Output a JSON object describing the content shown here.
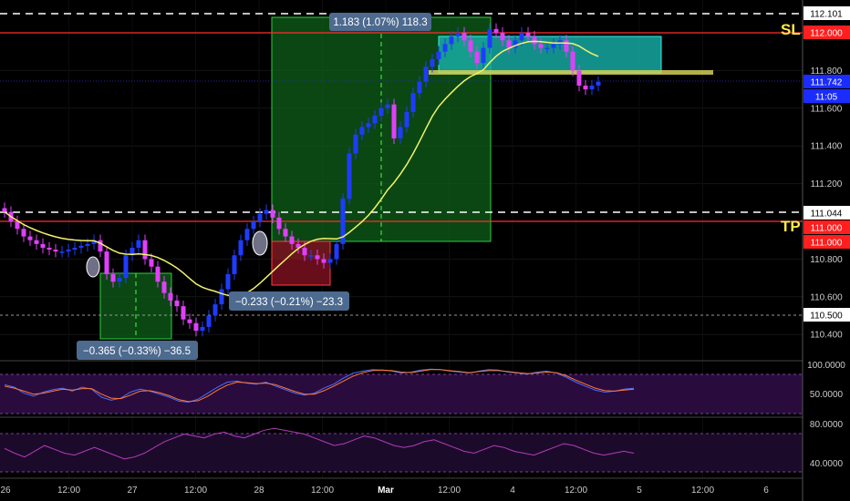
{
  "chart_data": {
    "type": "candlestick",
    "price_axis": {
      "ticks": [
        "112.101",
        "112.000",
        "111.800",
        "111.742",
        "111.600",
        "111.400",
        "111.200",
        "111.044",
        "111.000",
        "110.800",
        "110.600",
        "110.500",
        "110.400"
      ],
      "grid_ticks": [
        "111.800",
        "111.600",
        "111.400",
        "111.200",
        "110.800",
        "110.600",
        "110.400"
      ]
    },
    "x_axis": {
      "labels": [
        "26",
        "12:00",
        "27",
        "12:00",
        "28",
        "12:00",
        "Mar",
        "12:00",
        "4",
        "12:00",
        "5",
        "12:00",
        "6"
      ]
    },
    "price_badges": {
      "sl_price": "112.000",
      "current_price": "111.742",
      "countdown": "11:05",
      "top_dashed": "112.101",
      "tp_dashed": "111.044",
      "tp_price_1": "111.000",
      "tp_price_2": "111.000",
      "lower_dashed": "110.500"
    },
    "level_labels": {
      "sl": "SL",
      "tp": "TP"
    },
    "measure_labels": {
      "big": "1.183 (1.07%) 118.3",
      "mid": "−0.233 (−0.21%) −23.3",
      "small": "−0.365 (−0.33%) −36.5"
    },
    "candles": {
      "start_x": 5,
      "step": 7,
      "closes": [
        111.05,
        111.0,
        110.96,
        110.92,
        110.9,
        110.88,
        110.86,
        110.85,
        110.84,
        110.84,
        110.85,
        110.86,
        110.87,
        110.88,
        110.9,
        110.84,
        110.72,
        110.68,
        110.7,
        110.82,
        110.86,
        110.9,
        110.8,
        110.76,
        110.68,
        110.62,
        110.58,
        110.55,
        110.48,
        110.46,
        110.42,
        110.44,
        110.5,
        110.56,
        110.64,
        110.72,
        110.82,
        110.9,
        110.96,
        111.0,
        111.04,
        111.06,
        111.02,
        110.96,
        110.92,
        110.88,
        110.86,
        110.82,
        110.82,
        110.8,
        110.78,
        110.8,
        110.88,
        111.12,
        111.36,
        111.46,
        111.5,
        111.52,
        111.56,
        111.6,
        111.62,
        111.44,
        111.5,
        111.58,
        111.68,
        111.74,
        111.82,
        111.86,
        111.9,
        111.94,
        111.98,
        112.0,
        111.96,
        111.9,
        111.84,
        111.92,
        112.02,
        112.0,
        111.96,
        111.92,
        111.96,
        112.0,
        111.98,
        111.94,
        111.92,
        111.92,
        111.94,
        111.96,
        111.9,
        111.8,
        111.72,
        111.7,
        111.72,
        111.74
      ],
      "rsi_k": [
        65,
        60,
        48,
        42,
        50,
        55,
        58,
        52,
        60,
        56,
        40,
        34,
        38,
        50,
        56,
        52,
        46,
        40,
        32,
        30,
        36,
        48,
        60,
        70,
        72,
        68,
        66,
        70,
        62,
        55,
        48,
        44,
        48,
        58,
        66,
        78,
        88,
        92,
        95,
        94,
        92,
        88,
        90,
        94,
        96,
        95,
        92,
        90,
        88,
        92,
        95,
        94,
        90,
        88,
        86,
        90,
        92,
        88,
        80,
        70,
        62,
        54,
        50,
        52,
        56,
        58
      ],
      "rsi_d": [
        62,
        58,
        52,
        46,
        48,
        52,
        56,
        54,
        57,
        57,
        46,
        38,
        37,
        44,
        52,
        53,
        49,
        43,
        35,
        31,
        33,
        42,
        54,
        64,
        70,
        69,
        67,
        68,
        65,
        58,
        51,
        46,
        46,
        53,
        62,
        72,
        82,
        89,
        93,
        94,
        93,
        90,
        89,
        92,
        95,
        95,
        93,
        91,
        89,
        91,
        93,
        93,
        91,
        89,
        87,
        88,
        90,
        89,
        83,
        74,
        66,
        58,
        53,
        52,
        54,
        56
      ],
      "osc": [
        55,
        50,
        46,
        52,
        58,
        54,
        50,
        48,
        52,
        56,
        52,
        48,
        44,
        46,
        50,
        56,
        62,
        66,
        70,
        68,
        66,
        70,
        72,
        68,
        66,
        70,
        74,
        76,
        74,
        72,
        70,
        66,
        62,
        58,
        60,
        64,
        68,
        66,
        62,
        58,
        56,
        58,
        62,
        64,
        60,
        56,
        52,
        50,
        54,
        58,
        56,
        52,
        50,
        48,
        52,
        56,
        60,
        58,
        54,
        50,
        48,
        50,
        52,
        50
      ]
    },
    "rsi_axis": [
      "100.0000",
      "50.0000"
    ],
    "osc_axis": [
      "80.0000",
      "40.0000"
    ],
    "colors": {
      "up": "#1e3cff",
      "down": "#e040fb",
      "sma": "#f3f36b",
      "sl": "#ff2d2d",
      "panel": "#2a0b3e",
      "badge": "#4d6a8f"
    }
  }
}
